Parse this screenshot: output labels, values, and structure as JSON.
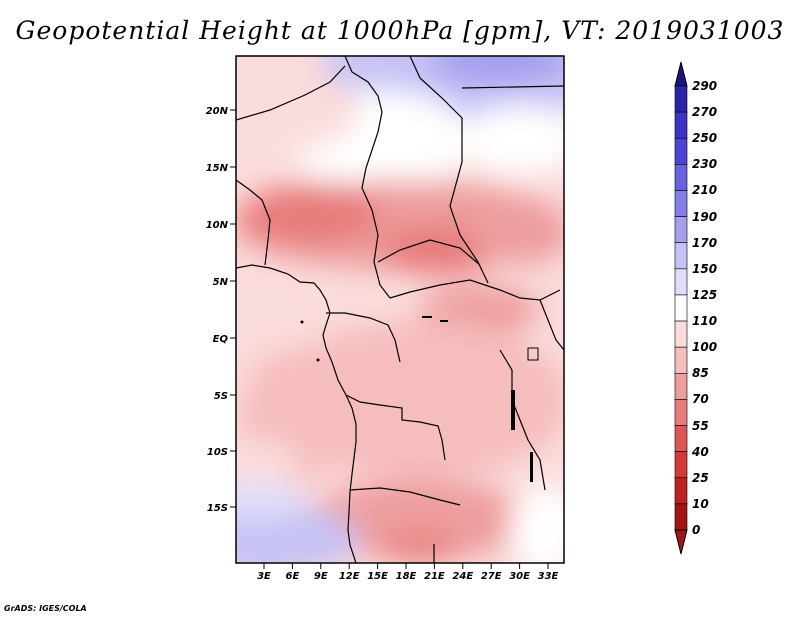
{
  "title": "Geopotential Height at 1000hPa [gpm], VT: 2019031003",
  "footer": "GrADS: IGES/COLA",
  "map": {
    "lat_labels": [
      "20N",
      "15N",
      "10N",
      "5N",
      "EQ",
      "5S",
      "10S",
      "15S"
    ],
    "lon_labels": [
      "3E",
      "6E",
      "9E",
      "12E",
      "15E",
      "18E",
      "21E",
      "24E",
      "27E",
      "30E",
      "33E"
    ],
    "region": "Central and Southern-Central Africa"
  },
  "colorbar": {
    "levels": [
      "290",
      "270",
      "250",
      "230",
      "210",
      "190",
      "170",
      "150",
      "125",
      "110",
      "100",
      "85",
      "70",
      "55",
      "40",
      "25",
      "10",
      "0"
    ],
    "colors": [
      "#1e1480",
      "#2c24a8",
      "#3d33c4",
      "#4c44d4",
      "#6a62e2",
      "#847ee6",
      "#a59fee",
      "#c6c2f5",
      "#e1def9",
      "#ffffff",
      "#fbdcdc",
      "#f6bdbd",
      "#ee9e9e",
      "#e87c7c",
      "#e05656",
      "#d43a3a",
      "#c02020",
      "#a31414"
    ]
  }
}
